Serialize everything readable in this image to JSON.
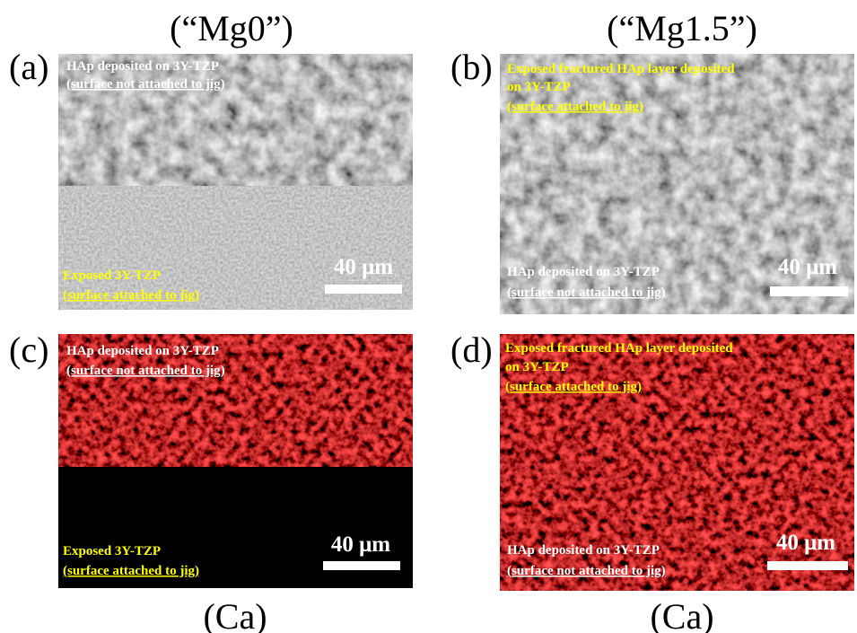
{
  "columns": [
    {
      "title": "(“Mg0”)",
      "footer": "(Ca)"
    },
    {
      "title": "(“Mg1.5”)",
      "footer": "(Ca)"
    }
  ],
  "panels": [
    {
      "label": "(a)",
      "top_lines": [
        "HAp deposited on 3Y-TZP",
        "(surface not attached to jig)"
      ],
      "bottom_lines": [
        "Exposed 3Y-TZP",
        "(surface attached to jig)"
      ],
      "scale_bar": "40 μm"
    },
    {
      "label": "(b)",
      "top_lines": [
        "Exposed fractured HAp layer deposited",
        "on 3Y-TZP",
        "(surface attached to jig)"
      ],
      "bottom_lines": [
        "HAp deposited on 3Y-TZP",
        "(surface not attached to jig)"
      ],
      "scale_bar": "40 μm"
    },
    {
      "label": "(c)",
      "top_lines": [
        "HAp deposited on 3Y-TZP",
        "(surface not attached to jig)"
      ],
      "bottom_lines": [
        "Exposed 3Y-TZP",
        "(surface attached to jig)"
      ],
      "scale_bar": "40 μm"
    },
    {
      "label": "(d)",
      "top_lines": [
        "Exposed fractured HAp layer deposited",
        "on 3Y-TZP",
        "(surface attached to jig)"
      ],
      "bottom_lines": [
        "HAp deposited on 3Y-TZP",
        "(surface not attached to jig)"
      ],
      "scale_bar": "40 μm"
    }
  ]
}
